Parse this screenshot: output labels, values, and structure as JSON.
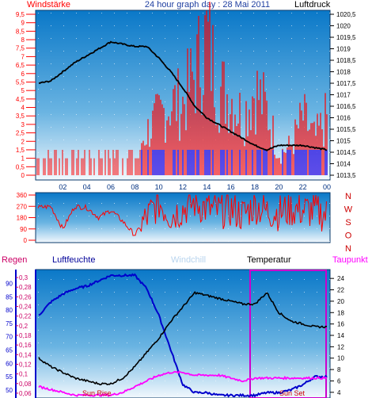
{
  "header": {
    "left": "Windstärke",
    "center": "24 hour graph day : 28 Mai 2011",
    "right": "Luftdruck"
  },
  "bottom_header": {
    "regen": "Regen",
    "luftfeuchte": "Luftfeuchte",
    "windchill": "Windchill",
    "temperatur": "Temperatur",
    "taupunkt": "Taupunkt"
  },
  "annotations": {
    "sunrise": "Sun Rise",
    "sunset": "Sun Set"
  },
  "colors": {
    "wind": "#ff0000",
    "wind_low": "#0000ff",
    "pressure": "#000000",
    "humidity": "#0000cc",
    "temperature": "#000000",
    "dewpoint": "#ff00ff",
    "rain": "#cc0033",
    "windchill": "#aaccee",
    "sun_box": "#cc00cc",
    "bg_top": "#0a78c8",
    "bg_bottom": "#eef6fc"
  },
  "chart_data": [
    {
      "type": "line",
      "title": "24 hour graph day : 28 Mai 2011",
      "x_ticks": [
        "02",
        "04",
        "06",
        "08",
        "10",
        "12",
        "14",
        "16",
        "18",
        "20",
        "22",
        "00"
      ],
      "y_left_label": "Windstärke",
      "y_left_ticks": [
        "0",
        "0,5",
        "1",
        "1,5",
        "2",
        "2,5",
        "3",
        "3,5",
        "4",
        "4,5",
        "5",
        "5,5",
        "6",
        "6,5",
        "7",
        "7,5",
        "8",
        "8,5",
        "9",
        "9,5"
      ],
      "y_left_range": [
        0,
        9.5
      ],
      "y_right_label": "Luftdruck",
      "y_right_ticks": [
        "1013,5",
        "1014",
        "1014,5",
        "1015",
        "1015,5",
        "1016",
        "1016,5",
        "1017",
        "1017,5",
        "1018",
        "1018,5",
        "1019",
        "1019,5",
        "1020",
        "1020,5"
      ],
      "y_right_range": [
        1013.5,
        1020.5
      ],
      "series": [
        {
          "name": "Luftdruck",
          "x": [
            0,
            1,
            2,
            3,
            4,
            5,
            6,
            7,
            8,
            9,
            10,
            11,
            12,
            13,
            14,
            15,
            16,
            17,
            18,
            19,
            20,
            21,
            22,
            23,
            24
          ],
          "y": [
            1017.5,
            1017.6,
            1018.0,
            1018.4,
            1018.7,
            1019.0,
            1019.3,
            1019.2,
            1019.1,
            1019.1,
            1018.6,
            1018.0,
            1017.3,
            1016.5,
            1016.0,
            1015.7,
            1015.4,
            1015.1,
            1014.8,
            1014.6,
            1014.8,
            1014.8,
            1014.8,
            1014.7,
            1014.6
          ]
        },
        {
          "name": "Windstärke",
          "x": [
            0,
            1,
            2,
            3,
            4,
            5,
            6,
            7,
            8,
            9,
            10,
            11,
            12,
            13,
            14,
            15,
            16,
            17,
            18,
            19,
            20,
            21,
            22,
            23,
            24
          ],
          "y": [
            1.5,
            1.5,
            1.5,
            1.0,
            1.5,
            1.5,
            1.0,
            1.0,
            1.5,
            3.0,
            4.0,
            5.0,
            5.0,
            7.0,
            9.5,
            6.0,
            5.5,
            4.0,
            6.0,
            4.5,
            1.5,
            2.0,
            4.0,
            2.5,
            4.0
          ]
        }
      ]
    },
    {
      "type": "line",
      "y_left_ticks": [
        "360",
        "270",
        "180",
        "90",
        "0"
      ],
      "y_left_range": [
        0,
        360
      ],
      "y_right_ticks": [
        "N",
        "W",
        "S",
        "O",
        "N"
      ],
      "series": [
        {
          "name": "Windrichtung",
          "x": [
            0,
            1,
            2,
            3,
            4,
            5,
            6,
            7,
            8,
            9,
            10,
            11,
            12,
            13,
            14,
            15,
            16,
            17,
            18,
            19,
            20,
            21,
            22,
            23,
            24
          ],
          "y": [
            260,
            270,
            90,
            270,
            260,
            180,
            240,
            150,
            40,
            180,
            300,
            200,
            250,
            300,
            250,
            230,
            250,
            200,
            280,
            230,
            220,
            250,
            240,
            230,
            200
          ]
        }
      ]
    },
    {
      "type": "line",
      "y_axis_humidity_ticks": [
        "50",
        "55",
        "60",
        "65",
        "70",
        "75",
        "80",
        "85",
        "90"
      ],
      "y_axis_humidity_range": [
        47,
        94
      ],
      "y_axis_rain_ticks": [
        "0,06",
        "0,08",
        "0,1",
        "0,12",
        "0,14",
        "0,16",
        "0,18",
        "0,2",
        "0,22",
        "0,24",
        "0,26",
        "0,28",
        "0,3"
      ],
      "y_axis_rain_range": [
        0.05,
        0.31
      ],
      "y_axis_temp_ticks": [
        "4",
        "6",
        "8",
        "10",
        "12",
        "14",
        "16",
        "18",
        "20",
        "22",
        "24"
      ],
      "y_axis_temp_range": [
        3,
        25
      ],
      "series": [
        {
          "name": "Luftfeuchte",
          "x": [
            0,
            1,
            2,
            3,
            4,
            5,
            6,
            7,
            8,
            9,
            10,
            11,
            12,
            13,
            14,
            15,
            16,
            17,
            18,
            19,
            20,
            21,
            22,
            23,
            24
          ],
          "y": [
            78,
            83,
            86,
            88,
            89,
            91,
            93,
            93,
            93,
            88,
            78,
            65,
            52,
            49,
            49,
            48,
            48,
            48,
            48,
            49,
            49,
            50,
            52,
            55,
            55
          ]
        },
        {
          "name": "Temperatur",
          "x": [
            0,
            1,
            2,
            3,
            4,
            5,
            6,
            7,
            8,
            9,
            10,
            11,
            12,
            13,
            14,
            15,
            16,
            17,
            18,
            19,
            20,
            21,
            22,
            23,
            24
          ],
          "y": [
            10,
            8.5,
            7.5,
            6.5,
            6,
            5.5,
            5.5,
            6.5,
            8.5,
            11,
            13.5,
            16.5,
            19,
            21.5,
            21,
            20.5,
            20,
            19.5,
            19.5,
            21.5,
            18,
            16.5,
            16,
            15.5,
            15.5
          ]
        },
        {
          "name": "Taupunkt",
          "x": [
            0,
            1,
            2,
            3,
            4,
            5,
            6,
            7,
            8,
            9,
            10,
            11,
            12,
            13,
            14,
            15,
            16,
            17,
            18,
            19,
            20,
            21,
            22,
            23,
            24
          ],
          "y": [
            5,
            4.5,
            4,
            3.5,
            3.5,
            3.5,
            3.5,
            4,
            5,
            6,
            7,
            7.5,
            7.5,
            7,
            7,
            7,
            6.5,
            6,
            6.5,
            6.5,
            6.5,
            6.5,
            6.5,
            6.5,
            6.5
          ]
        }
      ]
    }
  ]
}
